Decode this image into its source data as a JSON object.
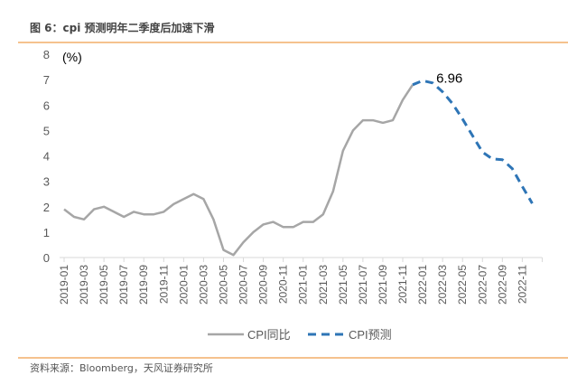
{
  "header": {
    "title": "图 6：cpi 预测明年二季度后加速下滑"
  },
  "footer": {
    "source": "资料来源：Bloomberg，天风证券研究所"
  },
  "chart_data": {
    "type": "line",
    "title": "",
    "ylabel": "(%)",
    "xlabel": "",
    "ylim": [
      0,
      8
    ],
    "yticks": [
      0,
      1,
      2,
      3,
      4,
      5,
      6,
      7,
      8
    ],
    "grid": false,
    "legend": "bottom",
    "x": [
      "2019-01",
      "2019-02",
      "2019-03",
      "2019-04",
      "2019-05",
      "2019-06",
      "2019-07",
      "2019-08",
      "2019-09",
      "2019-10",
      "2019-11",
      "2019-12",
      "2020-01",
      "2020-02",
      "2020-03",
      "2020-04",
      "2020-05",
      "2020-06",
      "2020-07",
      "2020-08",
      "2020-09",
      "2020-10",
      "2020-11",
      "2020-12",
      "2021-01",
      "2021-02",
      "2021-03",
      "2021-04",
      "2021-05",
      "2021-06",
      "2021-07",
      "2021-08",
      "2021-09",
      "2021-10",
      "2021-11",
      "2021-12",
      "2022-01",
      "2022-02",
      "2022-03",
      "2022-04",
      "2022-05",
      "2022-06",
      "2022-07",
      "2022-08",
      "2022-09",
      "2022-10",
      "2022-11",
      "2022-12"
    ],
    "xticklabels": [
      "2019-01",
      "2019-03",
      "2019-05",
      "2019-07",
      "2019-09",
      "2019-11",
      "2020-01",
      "2020-03",
      "2020-05",
      "2020-07",
      "2020-09",
      "2020-11",
      "2021-01",
      "2021-03",
      "2021-05",
      "2021-07",
      "2021-09",
      "2021-11",
      "2022-01",
      "2022-03",
      "2022-05",
      "2022-07",
      "2022-09",
      "2022-11"
    ],
    "series": [
      {
        "name": "CPI同比",
        "color": "#a6a6a6",
        "style": "solid",
        "values": [
          1.9,
          1.6,
          1.5,
          1.9,
          2.0,
          1.8,
          1.6,
          1.8,
          1.7,
          1.7,
          1.8,
          2.1,
          2.3,
          2.5,
          2.3,
          1.5,
          0.3,
          0.1,
          0.6,
          1.0,
          1.3,
          1.4,
          1.2,
          1.2,
          1.4,
          1.4,
          1.7,
          2.6,
          4.2,
          5.0,
          5.4,
          5.4,
          5.3,
          5.4,
          6.2,
          6.8,
          null,
          null,
          null,
          null,
          null,
          null,
          null,
          null,
          null,
          null,
          null,
          null
        ]
      },
      {
        "name": "CPI预测",
        "color": "#2e75b6",
        "style": "dashed",
        "values": [
          null,
          null,
          null,
          null,
          null,
          null,
          null,
          null,
          null,
          null,
          null,
          null,
          null,
          null,
          null,
          null,
          null,
          null,
          null,
          null,
          null,
          null,
          null,
          null,
          null,
          null,
          null,
          null,
          null,
          null,
          null,
          null,
          null,
          null,
          null,
          6.8,
          6.96,
          6.87,
          6.52,
          6.05,
          5.45,
          4.8,
          4.15,
          3.88,
          3.85,
          3.5,
          2.8,
          2.13
        ]
      }
    ],
    "annotations": [
      {
        "text": "6.96",
        "x": "2022-01",
        "y": 6.96
      }
    ]
  }
}
